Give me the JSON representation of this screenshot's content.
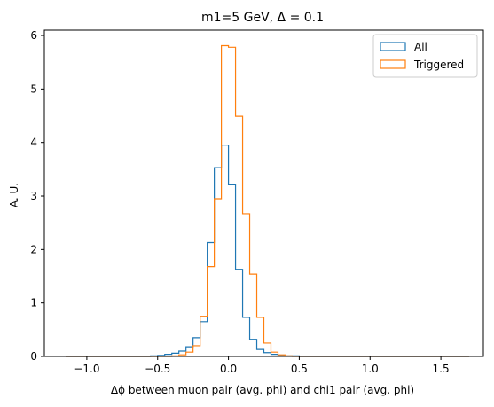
{
  "chart_data": {
    "type": "step-histogram",
    "title": "m1=5   GeV, Δ = 0.1",
    "xlabel": "Δϕ between muon pair (avg. phi) and chi1 pair (avg. phi)",
    "ylabel": "A. U.",
    "xlim": [
      -1.3,
      1.8
    ],
    "ylim": [
      0,
      6.1
    ],
    "xticks": [
      -1.0,
      -0.5,
      0.0,
      0.5,
      1.0,
      1.5
    ],
    "xtick_labels": [
      "−1.0",
      "−0.5",
      "0.0",
      "0.5",
      "1.0",
      "1.5"
    ],
    "yticks": [
      0,
      1,
      2,
      3,
      4,
      5,
      6
    ],
    "ytick_labels": [
      "0",
      "1",
      "2",
      "3",
      "4",
      "5",
      "6"
    ],
    "bin_edges": [
      -1.15,
      -1.1,
      -1.05,
      -1.0,
      -0.95,
      -0.9,
      -0.85,
      -0.8,
      -0.75,
      -0.7,
      -0.65,
      -0.6,
      -0.55,
      -0.5,
      -0.45,
      -0.4,
      -0.35,
      -0.3,
      -0.25,
      -0.2,
      -0.15,
      -0.1,
      -0.05,
      0.0,
      0.05,
      0.1,
      0.15,
      0.2,
      0.25,
      0.3,
      0.35,
      0.4,
      0.45,
      0.5,
      0.55,
      0.6,
      0.65,
      0.7,
      0.75,
      0.8,
      0.85,
      0.9,
      0.95,
      1.0,
      1.05,
      1.1,
      1.15,
      1.2,
      1.25,
      1.3,
      1.35,
      1.4,
      1.45,
      1.5,
      1.55,
      1.6,
      1.65,
      1.7
    ],
    "legend_position": "upper-right",
    "series": [
      {
        "name": "All",
        "color": "#1f77b4",
        "values": [
          0,
          0,
          0,
          0,
          0,
          0,
          0,
          0,
          0,
          0,
          0,
          0,
          0.01,
          0.02,
          0.04,
          0.06,
          0.1,
          0.18,
          0.35,
          0.65,
          2.13,
          3.53,
          3.95,
          3.21,
          1.63,
          0.73,
          0.32,
          0.13,
          0.07,
          0.04,
          0.02,
          0.01,
          0.01,
          0,
          0,
          0,
          0,
          0,
          0,
          0,
          0,
          0,
          0,
          0,
          0,
          0,
          0,
          0,
          0,
          0,
          0,
          0,
          0,
          0,
          0,
          0,
          0
        ]
      },
      {
        "name": "Triggered",
        "color": "#ff7f0e",
        "values": [
          0,
          0,
          0,
          0,
          0,
          0,
          0,
          0,
          0,
          0,
          0,
          0,
          0,
          0,
          0,
          0.01,
          0.03,
          0.08,
          0.2,
          0.75,
          1.68,
          2.95,
          5.81,
          5.78,
          4.49,
          2.67,
          1.54,
          0.73,
          0.25,
          0.08,
          0.03,
          0.01,
          0,
          0,
          0,
          0,
          0,
          0,
          0,
          0,
          0,
          0,
          0,
          0,
          0,
          0,
          0,
          0,
          0,
          0,
          0,
          0,
          0,
          0,
          0,
          0,
          0
        ]
      }
    ]
  }
}
